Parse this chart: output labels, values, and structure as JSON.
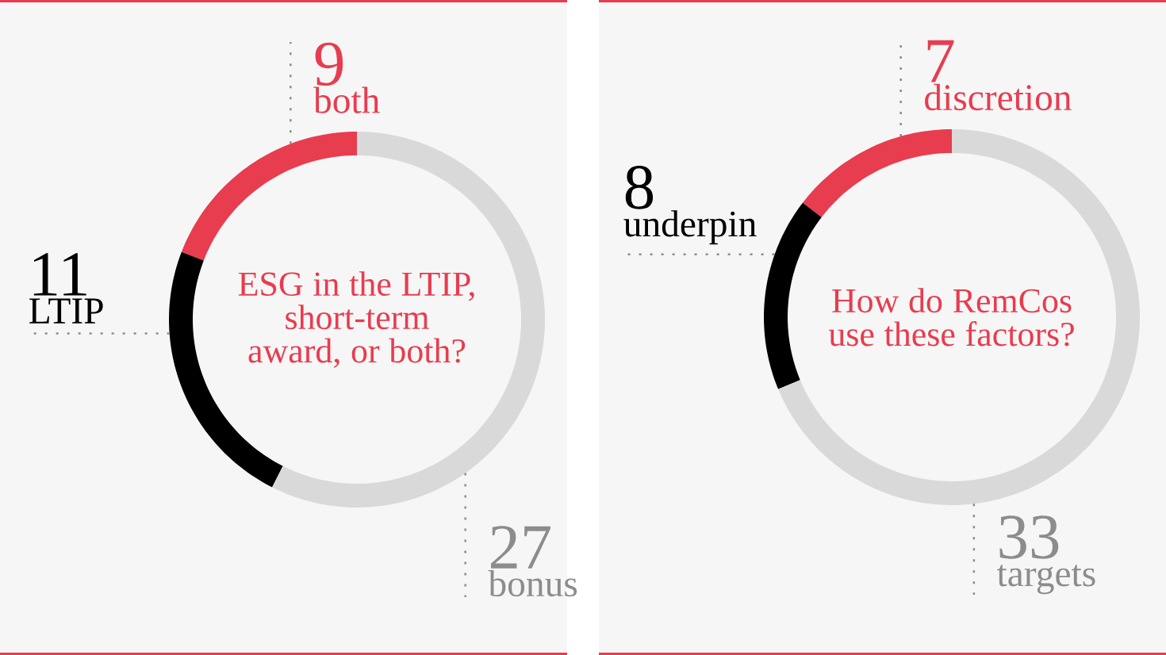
{
  "chart_data": [
    {
      "type": "donut",
      "title": "ESG in the LTIP, short-term award, or both?",
      "categories": [
        "both",
        "LTIP",
        "bonus"
      ],
      "values": [
        9,
        11,
        27
      ],
      "colors": [
        "#e83c4f",
        "#000000",
        "#d9d9d9"
      ],
      "data_labels": true
    },
    {
      "type": "donut",
      "title": "How do RemCos use these factors?",
      "categories": [
        "discretion",
        "underpin",
        "targets"
      ],
      "values": [
        7,
        8,
        33
      ],
      "colors": [
        "#e83c4f",
        "#000000",
        "#d9d9d9"
      ],
      "data_labels": true
    }
  ]
}
